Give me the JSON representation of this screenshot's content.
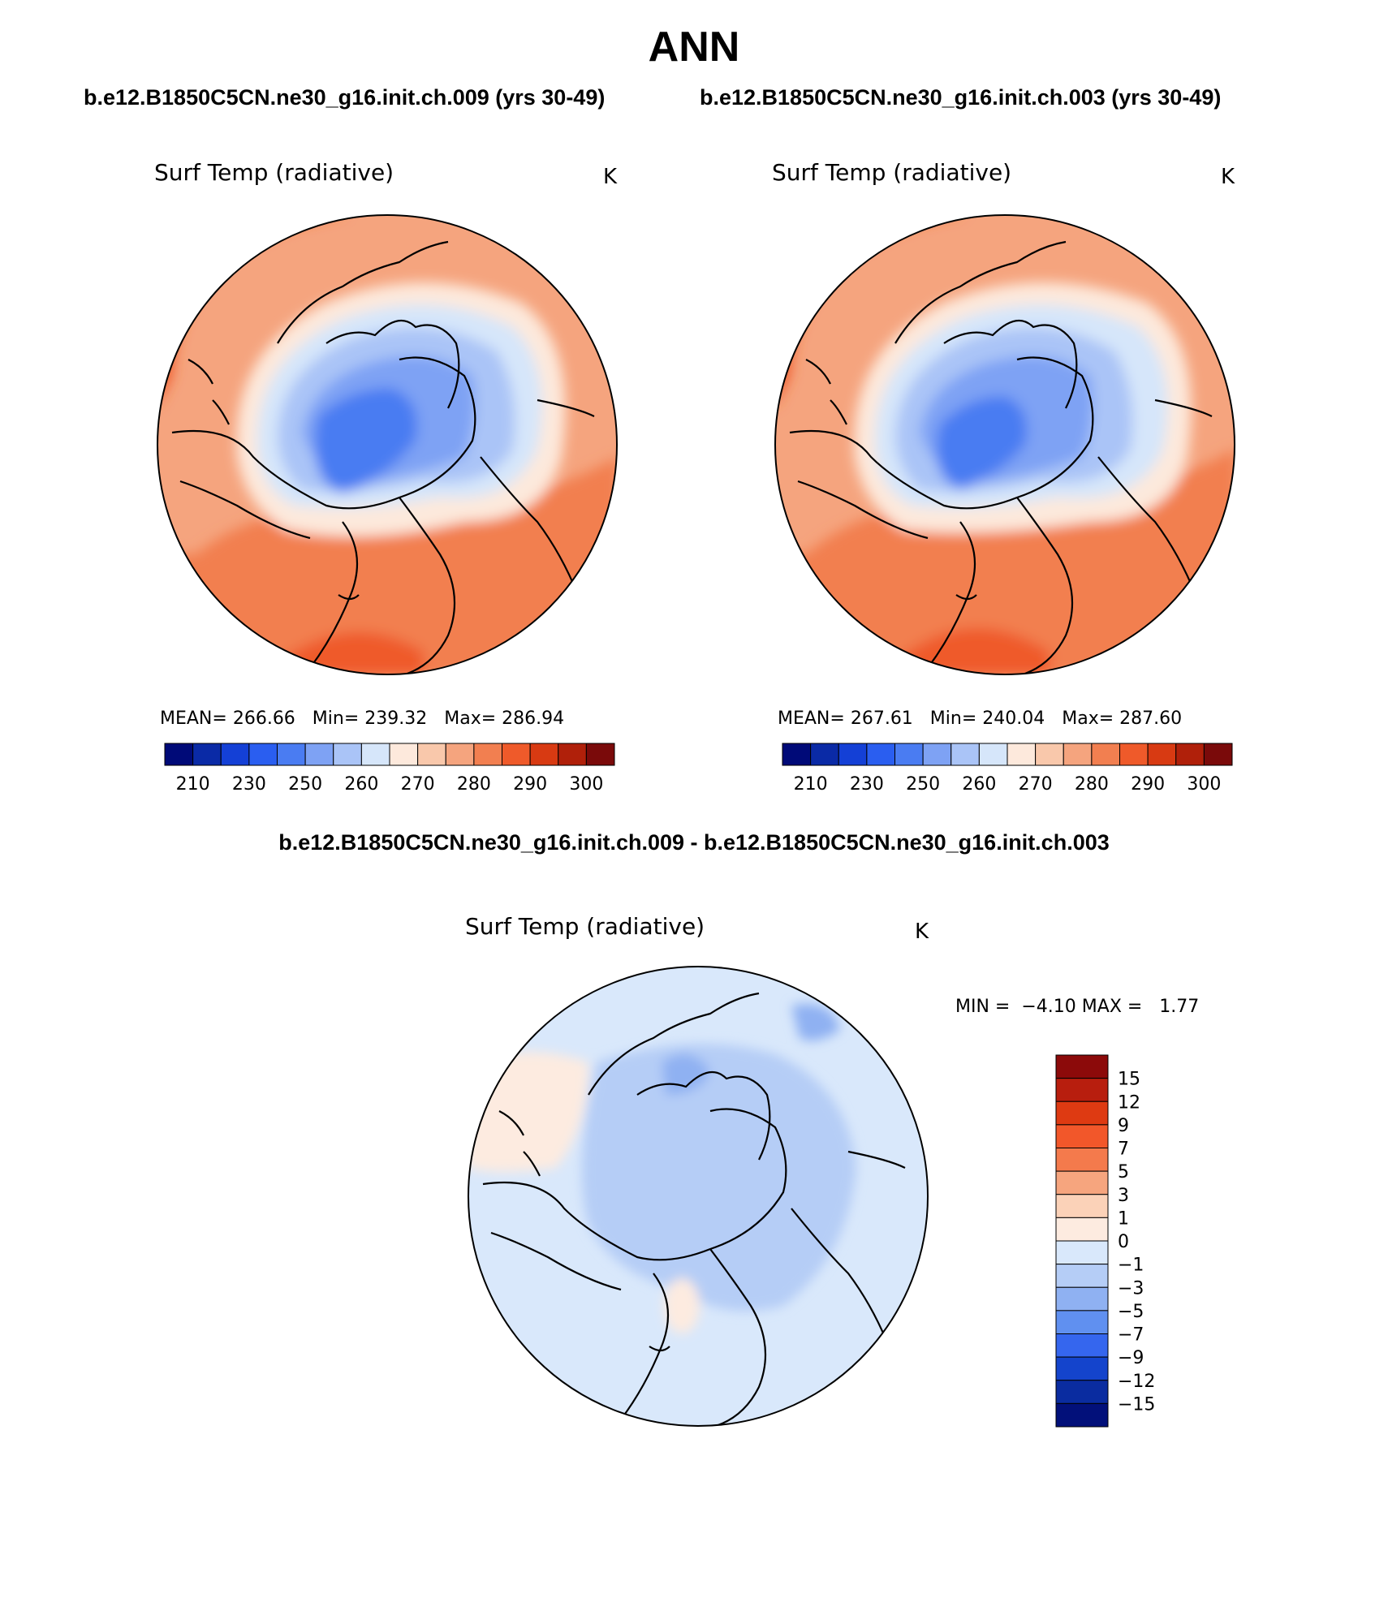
{
  "figure": {
    "title": "ANN",
    "case1_header": "b.e12.B1850C5CN.ne30_g16.init.ch.009 (yrs 30-49)",
    "case2_header": "b.e12.B1850C5CN.ne30_g16.init.ch.003 (yrs 30-49)",
    "diff_header": "b.e12.B1850C5CN.ne30_g16.init.ch.009 - b.e12.B1850C5CN.ne30_g16.init.ch.003"
  },
  "chart_data": [
    {
      "type": "heatmap",
      "projection": "north polar stereographic",
      "title": "Surf Temp (radiative)",
      "units": "K",
      "mean_label": "MEAN=",
      "mean": "266.66",
      "min_label": "Min=",
      "min": "239.32",
      "max_label": "Max=",
      "max": "286.94",
      "colorbar_ticks": [
        "210",
        "230",
        "250",
        "260",
        "270",
        "280",
        "290",
        "300"
      ],
      "color_levels": [
        "#000a78",
        "#0a2aa6",
        "#1440d6",
        "#2a5ef0",
        "#4a7cf2",
        "#7ea2f4",
        "#aac4f7",
        "#d6e6fa",
        "#fde9dc",
        "#f9c8ab",
        "#f5a47e",
        "#f27f50",
        "#ef5a2a",
        "#d83a12",
        "#b0200a",
        "#7a0a0a"
      ]
    },
    {
      "type": "heatmap",
      "projection": "north polar stereographic",
      "title": "Surf Temp (radiative)",
      "units": "K",
      "mean_label": "MEAN=",
      "mean": "267.61",
      "min_label": "Min=",
      "min": "240.04",
      "max_label": "Max=",
      "max": "287.60",
      "colorbar_ticks": [
        "210",
        "230",
        "250",
        "260",
        "270",
        "280",
        "290",
        "300"
      ],
      "color_levels": [
        "#000a78",
        "#0a2aa6",
        "#1440d6",
        "#2a5ef0",
        "#4a7cf2",
        "#7ea2f4",
        "#aac4f7",
        "#d6e6fa",
        "#fde9dc",
        "#f9c8ab",
        "#f5a47e",
        "#f27f50",
        "#ef5a2a",
        "#d83a12",
        "#b0200a",
        "#7a0a0a"
      ]
    },
    {
      "type": "heatmap",
      "projection": "north polar stereographic",
      "title": "Surf Temp (radiative)",
      "units": "K",
      "min_label": "MIN =",
      "min": "−4.10",
      "max_label": "MAX =",
      "max": "1.77",
      "colorbar_ticks": [
        "15",
        "12",
        "9",
        "7",
        "5",
        "3",
        "1",
        "0",
        "−1",
        "−3",
        "−5",
        "−7",
        "−9",
        "−12",
        "−15"
      ],
      "color_levels": [
        "#8c0a0a",
        "#b81e0e",
        "#de3a12",
        "#f2572a",
        "#f47a4c",
        "#f6a57e",
        "#fbd2b8",
        "#fdebe0",
        "#d9e8fb",
        "#b5cdf6",
        "#8fb1f2",
        "#6090f0",
        "#3566ee",
        "#1444cc",
        "#0a2ca0",
        "#02107a"
      ]
    }
  ]
}
